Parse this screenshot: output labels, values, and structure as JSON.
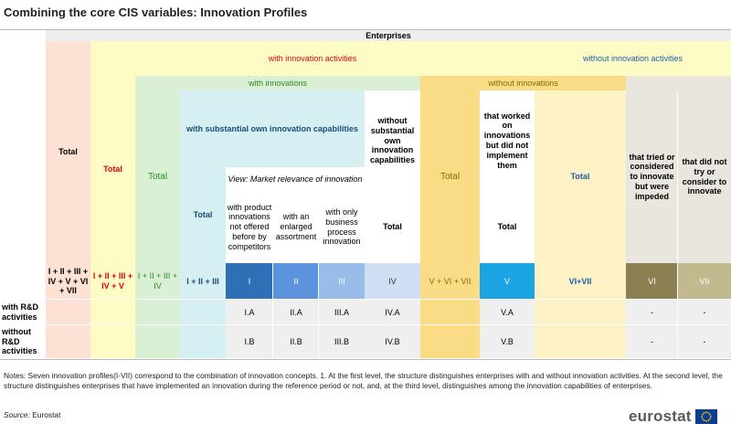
{
  "title": "Combining the core CIS variables: Innovation Profiles",
  "headers": {
    "enterprises": "Enterprises",
    "total": "Total",
    "with_innovation_activities": "with innovation activities",
    "without_innovation_activities": "without innovation activities",
    "total_wia": "Total",
    "with_innovations": "with innovations",
    "without_innovations": "without innovations",
    "total_wi": "Total",
    "with_substantial": "with substantial own innovation capabilities",
    "without_substantial": "without substantial own innovation capabilities",
    "total_wsub": "Total",
    "view_market": "View: Market relevance of innovation",
    "product_innov": "with product innovations not offered before by competitors",
    "enlarged": "with an enlarged assortment",
    "business_only": "with only business process innovation",
    "total_wosub": "Total",
    "total_woi": "Total",
    "worked_on": "that worked on innovations but did not implement them",
    "total_worked": "Total",
    "total_wo_ia": "Total",
    "tried": "that tried or considered to innovate but were impeded",
    "did_not_try": "that did not try or consider to innovate"
  },
  "codes": {
    "total": "I + II + III + IV + V + VI + VII",
    "wia": "I + II + III + IV + V",
    "wi": "I + II + III + IV",
    "wsub": "I + II + III",
    "c1": "I",
    "c2": "II",
    "c3": "III",
    "c4": "IV",
    "woi": "V + VI + VII",
    "c5": "V",
    "wo_ia": "VI+VII",
    "c6": "VI",
    "c7": "VII"
  },
  "rows": {
    "rd_with": {
      "label": "with R&D activities",
      "c1": "I.A",
      "c2": "II.A",
      "c3": "III.A",
      "c4": "IV.A",
      "c5": "V.A",
      "c6": "-",
      "c7": "-"
    },
    "rd_without": {
      "label": "without R&D activities",
      "c1": "I.B",
      "c2": "II.B",
      "c3": "III.B",
      "c4": "IV.B",
      "c5": "V.B",
      "c6": "-",
      "c7": "-"
    }
  },
  "notes": "Notes: Seven innovation profiles(I-VII) correspond to the combination of innovation concepts. 1. At the first level, the structure distinguishes enterprises with and without innovation activities. At the second level, the structure distinguishes enterprises that have implemented an innovation during the reference period or not, and, at the third level, distinguishes among the innovation capabilities of enterprises.",
  "source_label": "Source:",
  "source_value": "Eurostat",
  "logo_text": "eurostat",
  "colors": {
    "salmon": "#fce1d4",
    "lightyellow": "#fdfcc4",
    "green": "#d9f0d4",
    "cyan": "#d6eff2",
    "gold": "#fadc86",
    "lightgold": "#fcf2c6",
    "grey": "#e8e6de",
    "blue1": "#2e6fb6",
    "blue2": "#5b93dc",
    "blue3": "#98bde8",
    "blue4": "#cfe0f4",
    "blue5": "#1aa4e4",
    "olive1": "#8c8052",
    "olive2": "#c2b98e"
  }
}
